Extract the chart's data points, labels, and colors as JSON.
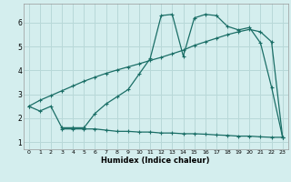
{
  "xlabel": "Humidex (Indice chaleur)",
  "background_color": "#d4eeee",
  "grid_color": "#b8d8d8",
  "line_color": "#1a6e66",
  "xlim": [
    -0.5,
    23.5
  ],
  "ylim": [
    0.7,
    6.8
  ],
  "yticks": [
    1,
    2,
    3,
    4,
    5,
    6
  ],
  "xticks": [
    0,
    1,
    2,
    3,
    4,
    5,
    6,
    7,
    8,
    9,
    10,
    11,
    12,
    13,
    14,
    15,
    16,
    17,
    18,
    19,
    20,
    21,
    22,
    23
  ],
  "line1_x": [
    0,
    1,
    2,
    3,
    4,
    5,
    6,
    7,
    8,
    9,
    10,
    11,
    12,
    13,
    14,
    15,
    16,
    17,
    18,
    19,
    20,
    21,
    22,
    23
  ],
  "line1_y": [
    2.5,
    2.3,
    2.5,
    1.6,
    1.6,
    1.6,
    2.2,
    2.6,
    2.9,
    3.2,
    3.85,
    4.5,
    6.3,
    6.35,
    4.6,
    6.2,
    6.35,
    6.3,
    5.85,
    5.7,
    5.8,
    5.15,
    3.3,
    1.2
  ],
  "line2_x": [
    3,
    4,
    5,
    6,
    7,
    8,
    9,
    10,
    11,
    12,
    13,
    14,
    15,
    16,
    17,
    18,
    19,
    20,
    21,
    22,
    23
  ],
  "line2_y": [
    1.55,
    1.55,
    1.55,
    1.55,
    1.5,
    1.45,
    1.45,
    1.42,
    1.42,
    1.38,
    1.38,
    1.35,
    1.35,
    1.33,
    1.3,
    1.28,
    1.25,
    1.25,
    1.22,
    1.2,
    1.2
  ],
  "line3_x": [
    0,
    1,
    2,
    3,
    4,
    5,
    6,
    7,
    8,
    9,
    10,
    11,
    12,
    13,
    14,
    15,
    16,
    17,
    18,
    19,
    20,
    21,
    22,
    23
  ],
  "line3_y": [
    2.5,
    2.75,
    2.95,
    3.15,
    3.35,
    3.55,
    3.72,
    3.88,
    4.02,
    4.15,
    4.28,
    4.42,
    4.55,
    4.7,
    4.85,
    5.05,
    5.2,
    5.35,
    5.5,
    5.62,
    5.72,
    5.62,
    5.2,
    1.2
  ]
}
